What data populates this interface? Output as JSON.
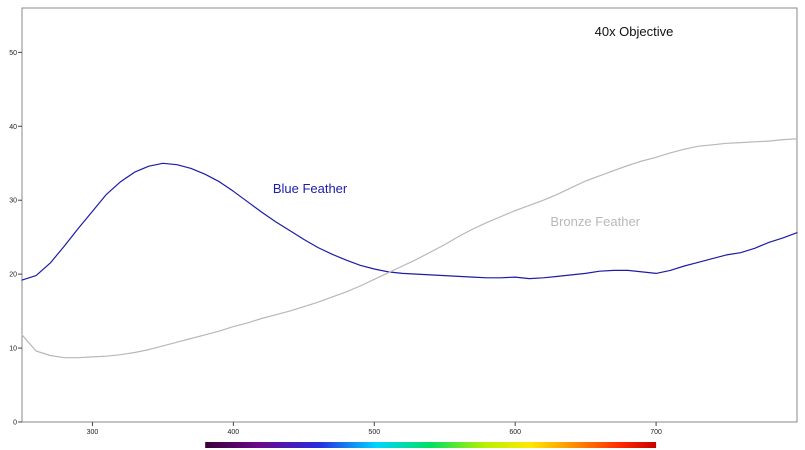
{
  "chart_data": {
    "type": "line",
    "title": "40x Objective",
    "xlabel": "",
    "ylabel": "",
    "xlim": [
      250,
      800
    ],
    "ylim": [
      0,
      56
    ],
    "x_ticks": [
      300,
      400,
      500,
      600,
      700
    ],
    "y_ticks": [
      0,
      10,
      20,
      30,
      40,
      50
    ],
    "grid": false,
    "spectrum_bar": {
      "from": 380,
      "to": 700
    },
    "series": [
      {
        "name": "Blue Feather",
        "color": "#1c1ca8",
        "x": [
          250,
          260,
          270,
          280,
          290,
          300,
          310,
          320,
          330,
          340,
          350,
          360,
          370,
          380,
          390,
          400,
          410,
          420,
          430,
          440,
          450,
          460,
          470,
          480,
          490,
          500,
          510,
          520,
          530,
          540,
          550,
          560,
          570,
          580,
          590,
          600,
          610,
          620,
          630,
          640,
          650,
          660,
          670,
          680,
          690,
          700,
          710,
          720,
          730,
          740,
          750,
          760,
          770,
          780,
          790,
          800
        ],
        "y": [
          19.2,
          19.8,
          21.5,
          23.8,
          26.2,
          28.5,
          30.8,
          32.5,
          33.8,
          34.6,
          35.0,
          34.8,
          34.3,
          33.5,
          32.5,
          31.2,
          29.8,
          28.4,
          27.1,
          25.9,
          24.7,
          23.6,
          22.7,
          21.9,
          21.2,
          20.7,
          20.3,
          20.1,
          20.0,
          19.9,
          19.8,
          19.7,
          19.6,
          19.5,
          19.5,
          19.6,
          19.4,
          19.5,
          19.7,
          19.9,
          20.1,
          20.4,
          20.5,
          20.5,
          20.3,
          20.1,
          20.5,
          21.1,
          21.6,
          22.1,
          22.6,
          22.9,
          23.5,
          24.3,
          24.9,
          25.6
        ]
      },
      {
        "name": "Bronze Feather",
        "color": "#b8b8b8",
        "x": [
          250,
          260,
          270,
          280,
          290,
          300,
          310,
          320,
          330,
          340,
          350,
          360,
          370,
          380,
          390,
          400,
          410,
          420,
          430,
          440,
          450,
          460,
          470,
          480,
          490,
          500,
          510,
          520,
          530,
          540,
          550,
          560,
          570,
          580,
          590,
          600,
          610,
          620,
          630,
          640,
          650,
          660,
          670,
          680,
          690,
          700,
          710,
          720,
          730,
          740,
          750,
          760,
          770,
          780,
          790,
          800
        ],
        "y": [
          11.8,
          9.6,
          9.0,
          8.7,
          8.7,
          8.8,
          8.9,
          9.1,
          9.4,
          9.8,
          10.3,
          10.8,
          11.3,
          11.8,
          12.3,
          12.9,
          13.4,
          14.0,
          14.5,
          15.0,
          15.6,
          16.2,
          16.9,
          17.6,
          18.4,
          19.3,
          20.2,
          21.1,
          22.0,
          23.0,
          24.0,
          25.1,
          26.1,
          27.0,
          27.8,
          28.6,
          29.3,
          30.0,
          30.8,
          31.7,
          32.6,
          33.3,
          34.0,
          34.7,
          35.3,
          35.8,
          36.4,
          36.9,
          37.3,
          37.5,
          37.7,
          37.8,
          37.9,
          38.0,
          38.2,
          38.3
        ]
      }
    ],
    "annotations": [
      {
        "text": "Blue Feather",
        "x": 428,
        "y": 31.0,
        "color": "#1c1ca8"
      },
      {
        "text": "Bronze Feather",
        "x": 625,
        "y": 26.5,
        "color": "#b8b8b8"
      }
    ]
  }
}
